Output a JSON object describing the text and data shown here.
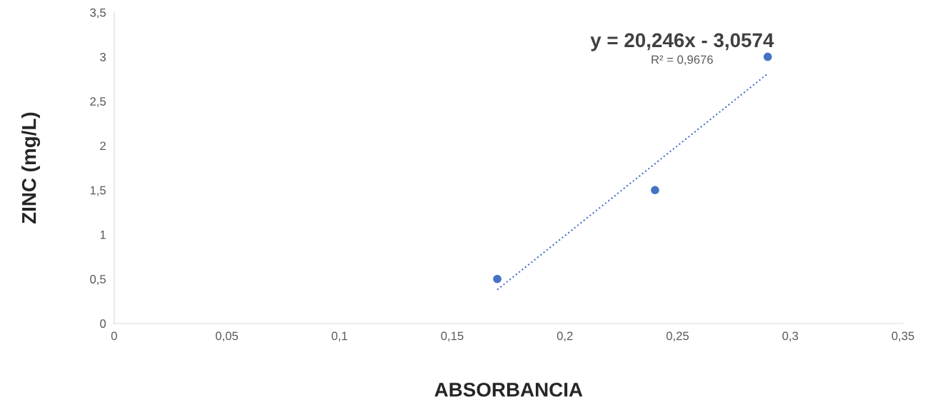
{
  "chart_data": {
    "type": "scatter",
    "xlabel": "ABSORBANCIA",
    "ylabel": "ZINC (mg/L)",
    "series": [
      {
        "color": "#4472c4",
        "x": [
          0.17,
          0.24,
          0.29
        ],
        "values": [
          0.5,
          1.5,
          3
        ],
        "marker": "circle"
      },
      {
        "type": "line",
        "color": "#4472c4",
        "x": [
          0.17,
          0.29
        ],
        "values": [
          0.38,
          2.81
        ],
        "line_style": "dotted",
        "marker": "none"
      }
    ],
    "annotations": [
      "y = 20,246x - 3,0574",
      "R² = 0,9676"
    ],
    "xlim": [
      0,
      0.35
    ],
    "ylim": [
      0,
      3.5
    ],
    "xticks": [
      0,
      {
        "value": 0.05,
        "label": "0,05"
      },
      {
        "value": 0.1,
        "label": "0,1"
      },
      {
        "value": 0.15,
        "label": "0,15"
      },
      {
        "value": 0.2,
        "label": "0,2"
      },
      {
        "value": 0.25,
        "label": "0,25"
      },
      {
        "value": 0.3,
        "label": "0,3"
      },
      {
        "value": 0.35,
        "label": "0,35"
      }
    ],
    "yticks": [
      0,
      {
        "value": 0.5,
        "label": "0,5"
      },
      1,
      {
        "value": 1.5,
        "label": "1,5"
      },
      2,
      {
        "value": 2.5,
        "label": "2,5"
      },
      3,
      {
        "value": 3.5,
        "label": "3,5"
      }
    ],
    "grid": false,
    "legend": false
  }
}
